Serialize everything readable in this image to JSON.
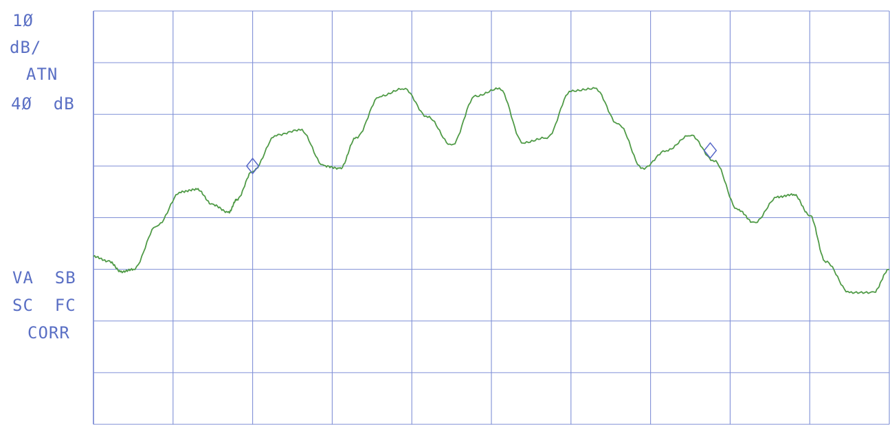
{
  "colors": {
    "grid": "#7f8fd6",
    "trace": "#4f9a46",
    "marker": "#5566c8",
    "text": "#5a6fc4"
  },
  "labels": {
    "scale_value": "1Ø",
    "scale_unit": "dB/",
    "atn_label": "ATN",
    "atn_value": "4Ø  dB",
    "va_sb": "VA  SB",
    "sc_fc": "SC  FC",
    "corr": "CORR"
  },
  "chart_data": {
    "type": "line",
    "title": "",
    "xlabel": "",
    "ylabel": "",
    "scale_db_per_div": 10,
    "attenuation_db": 40,
    "x_divisions": 10,
    "y_divisions": 8,
    "xlim": [
      0,
      10
    ],
    "ylim": [
      0,
      8
    ],
    "grid": true,
    "series": [
      {
        "x": [
          0,
          0.2,
          0.35,
          0.5,
          0.8,
          1.1,
          1.3,
          1.5,
          1.7,
          1.8,
          2.0,
          2.3,
          2.6,
          2.9,
          3.1,
          3.3,
          3.6,
          3.9,
          4.2,
          4.5,
          4.8,
          5.1,
          5.4,
          5.7,
          6.0,
          6.3,
          6.6,
          6.9,
          7.2,
          7.5,
          7.8,
          8.1,
          8.3,
          8.6,
          8.8,
          9.0,
          9.2,
          9.5,
          9.8,
          10.0
        ],
        "y": [
          3.25,
          3.15,
          2.95,
          3.0,
          3.85,
          4.5,
          4.55,
          4.25,
          4.1,
          4.35,
          4.9,
          5.6,
          5.7,
          5.0,
          4.95,
          5.55,
          6.35,
          6.5,
          5.95,
          5.4,
          6.35,
          6.5,
          5.45,
          5.55,
          6.45,
          6.5,
          5.8,
          4.95,
          5.3,
          5.6,
          5.1,
          4.15,
          3.9,
          4.4,
          4.45,
          4.05,
          3.15,
          2.55,
          2.55,
          3.0
        ]
      }
    ],
    "markers": [
      {
        "x": 2.0,
        "y": 5.0
      },
      {
        "x": 7.75,
        "y": 5.3
      }
    ]
  }
}
